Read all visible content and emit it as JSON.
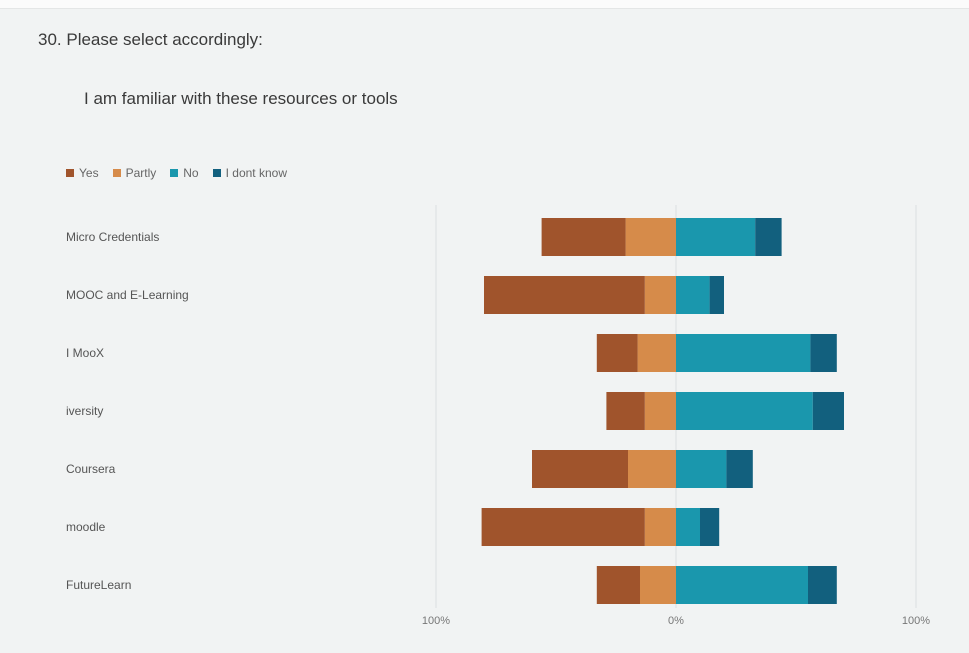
{
  "question": {
    "title": "30.  Please select accordingly:",
    "subtitle": "I am familiar with these resources or tools"
  },
  "colors": {
    "Yes": "#a0542c",
    "Partly": "#d68b4a",
    "No": "#1a97ad",
    "I dont know": "#12607e"
  },
  "chart_data": {
    "type": "bar",
    "orientation": "horizontal-diverging",
    "legend_position": "top-left",
    "legend": [
      "Yes",
      "Partly",
      "No",
      "I dont know"
    ],
    "categories": [
      "Micro Credentials",
      "MOOC and E-Learning",
      "I MooX",
      "iversity",
      "Coursera",
      "moodle",
      "FutureLearn"
    ],
    "series": [
      {
        "name": "Yes",
        "side": "negative",
        "values": [
          35,
          67,
          17,
          16,
          40,
          68,
          18
        ]
      },
      {
        "name": "Partly",
        "side": "negative",
        "values": [
          21,
          13,
          16,
          13,
          20,
          13,
          15
        ]
      },
      {
        "name": "No",
        "side": "positive",
        "values": [
          33,
          14,
          56,
          57,
          21,
          10,
          55
        ]
      },
      {
        "name": "I dont know",
        "side": "positive",
        "values": [
          11,
          6,
          11,
          13,
          11,
          8,
          12
        ]
      }
    ],
    "xlim": [
      -100,
      100
    ],
    "x_ticks": [
      "100%",
      "0%",
      "100%"
    ],
    "grid": true
  }
}
